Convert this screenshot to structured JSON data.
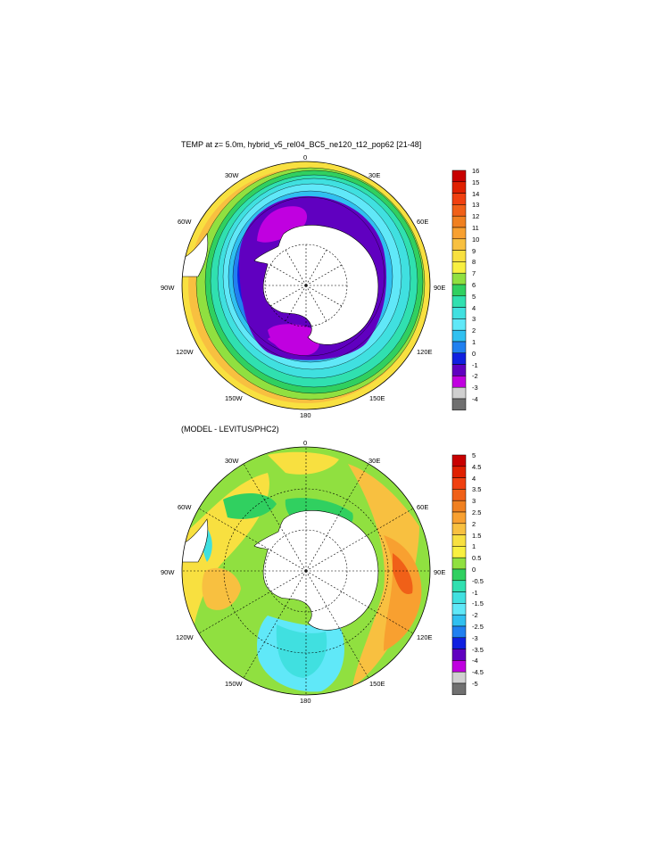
{
  "panel1": {
    "title": "TEMP at z=   5.0m, hybrid_v5_rel04_BC5_ne120_t12_pop62 [21-48]",
    "lon_labels": [
      "0",
      "30E",
      "60E",
      "90E",
      "120E",
      "150E",
      "180",
      "150W",
      "120W",
      "90W",
      "60W",
      "30W"
    ],
    "colorbar": {
      "labels": [
        "16",
        "15",
        "14",
        "13",
        "12",
        "11",
        "10",
        "9",
        "8",
        "7",
        "6",
        "5",
        "4",
        "3",
        "2",
        "1",
        "0",
        "-1",
        "-2",
        "-3",
        "-4"
      ],
      "colors": [
        "#c80000",
        "#e02000",
        "#f04010",
        "#f06018",
        "#f08020",
        "#f8a030",
        "#f8c040",
        "#f8e040",
        "#f8f040",
        "#90e040",
        "#30d060",
        "#30e0b0",
        "#40e0e0",
        "#60e8f8",
        "#30c0f0",
        "#2080f0",
        "#1020e0",
        "#6000c0",
        "#c000e0",
        "#d0d0d0",
        "#707070"
      ]
    }
  },
  "panel2": {
    "title": "(MODEL - LEVITUS/PHC2)",
    "lon_labels": [
      "0",
      "30E",
      "60E",
      "90E",
      "120E",
      "150E",
      "180",
      "150W",
      "120W",
      "90W",
      "60W",
      "30W"
    ],
    "colorbar": {
      "labels": [
        "5",
        "4.5",
        "4",
        "3.5",
        "3",
        "2.5",
        "2",
        "1.5",
        "1",
        "0.5",
        "0",
        "-0.5",
        "-1",
        "-1.5",
        "-2",
        "-2.5",
        "-3",
        "-3.5",
        "-4",
        "-4.5",
        "-5"
      ],
      "colors": [
        "#c80000",
        "#e02000",
        "#f04010",
        "#f06018",
        "#f08020",
        "#f8a030",
        "#f8c040",
        "#f8e040",
        "#f8f040",
        "#90e040",
        "#30d060",
        "#30e0b0",
        "#40e0e0",
        "#60e8f8",
        "#30c0f0",
        "#2080f0",
        "#1020e0",
        "#6000c0",
        "#c000e0",
        "#d0d0d0",
        "#707070"
      ]
    }
  }
}
